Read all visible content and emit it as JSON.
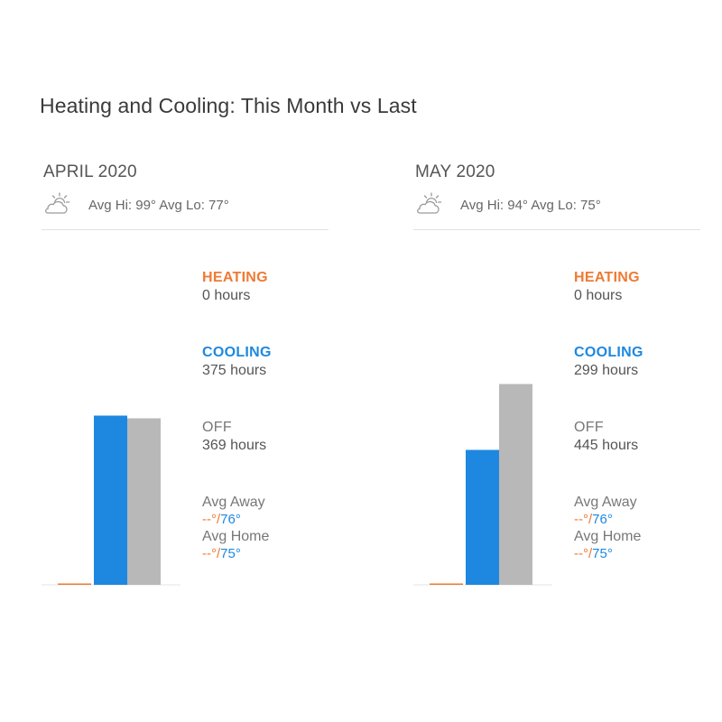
{
  "page": {
    "title": "Heating and Cooling: This Month vs Last"
  },
  "colors": {
    "heating": "#ef7a33",
    "cooling": "#1e88e0",
    "off": "#b8b8b8"
  },
  "months": [
    {
      "name": "APRIL 2020",
      "weather_icon": "partly-cloudy-sun-icon",
      "weather": "Avg Hi: 99° Avg Lo: 77°",
      "heating": {
        "label": "HEATING",
        "value": "0 hours"
      },
      "cooling": {
        "label": "COOLING",
        "value": "375 hours"
      },
      "off": {
        "label": "OFF",
        "value": "369 hours"
      },
      "avg_away": {
        "label": "Avg Away",
        "heat": "--°",
        "sep": "/",
        "cool": "76°"
      },
      "avg_home": {
        "label": "Avg Home",
        "heat": "--°",
        "sep": "/",
        "cool": "75°"
      }
    },
    {
      "name": "MAY 2020",
      "weather_icon": "partly-cloudy-sun-icon",
      "weather": "Avg Hi: 94° Avg Lo: 75°",
      "heating": {
        "label": "HEATING",
        "value": "0 hours"
      },
      "cooling": {
        "label": "COOLING",
        "value": "299 hours"
      },
      "off": {
        "label": "OFF",
        "value": "445 hours"
      },
      "avg_away": {
        "label": "Avg Away",
        "heat": "--°",
        "sep": "/",
        "cool": "76°"
      },
      "avg_home": {
        "label": "Avg Home",
        "heat": "--°",
        "sep": "/",
        "cool": "75°"
      }
    }
  ],
  "chart_data": [
    {
      "type": "bar",
      "title": "APRIL 2020",
      "categories": [
        "HEATING",
        "COOLING",
        "OFF"
      ],
      "values": [
        0,
        375,
        369
      ],
      "ylim": [
        0,
        744
      ]
    },
    {
      "type": "bar",
      "title": "MAY 2020",
      "categories": [
        "HEATING",
        "COOLING",
        "OFF"
      ],
      "values": [
        0,
        299,
        445
      ],
      "ylim": [
        0,
        744
      ]
    }
  ]
}
